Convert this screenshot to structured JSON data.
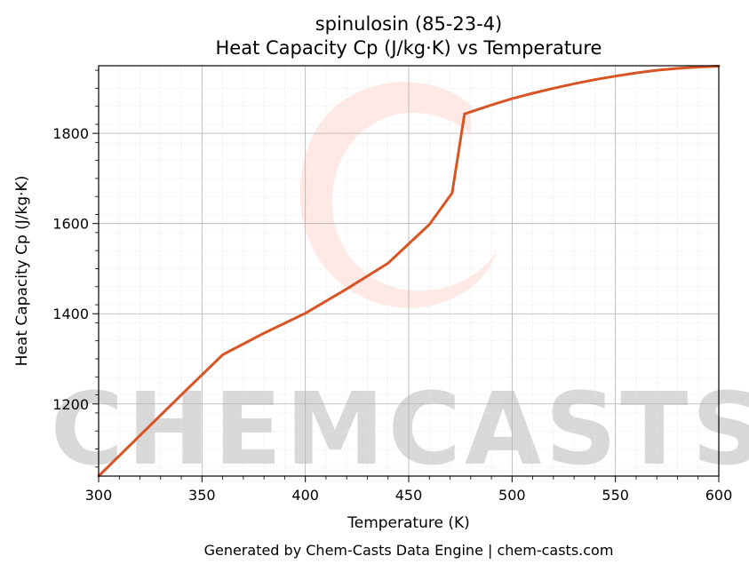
{
  "chart_data": {
    "type": "line",
    "title_line1": "spinulosin (85-23-4)",
    "title_line2": "Heat Capacity Cp (J/kg·K) vs Temperature",
    "xlabel": "Temperature (K)",
    "ylabel": "Heat Capacity Cp (J/kg·K)",
    "xlim": [
      300,
      600
    ],
    "ylim": [
      1040,
      1950
    ],
    "xticks": [
      300,
      350,
      400,
      450,
      500,
      550,
      600
    ],
    "yticks": [
      1200,
      1400,
      1600,
      1800
    ],
    "grid": true,
    "series": [
      {
        "color": "#d95425",
        "x": [
          300,
          320,
          340,
          360,
          380,
          400,
          420,
          440,
          460,
          471,
          477,
          490,
          500,
          510,
          520,
          530,
          540,
          550,
          560,
          570,
          580,
          590,
          600
        ],
        "y": [
          1040,
          1130,
          1220,
          1309,
          1357,
          1401,
          1455,
          1512,
          1598,
          1668,
          1843,
          1863,
          1877,
          1889,
          1900,
          1910,
          1919,
          1927,
          1934,
          1940,
          1944,
          1947,
          1949
        ]
      }
    ]
  },
  "footer": "Generated by Chem-Casts Data Engine | chem-casts.com",
  "watermark": "CHEMCASTS"
}
